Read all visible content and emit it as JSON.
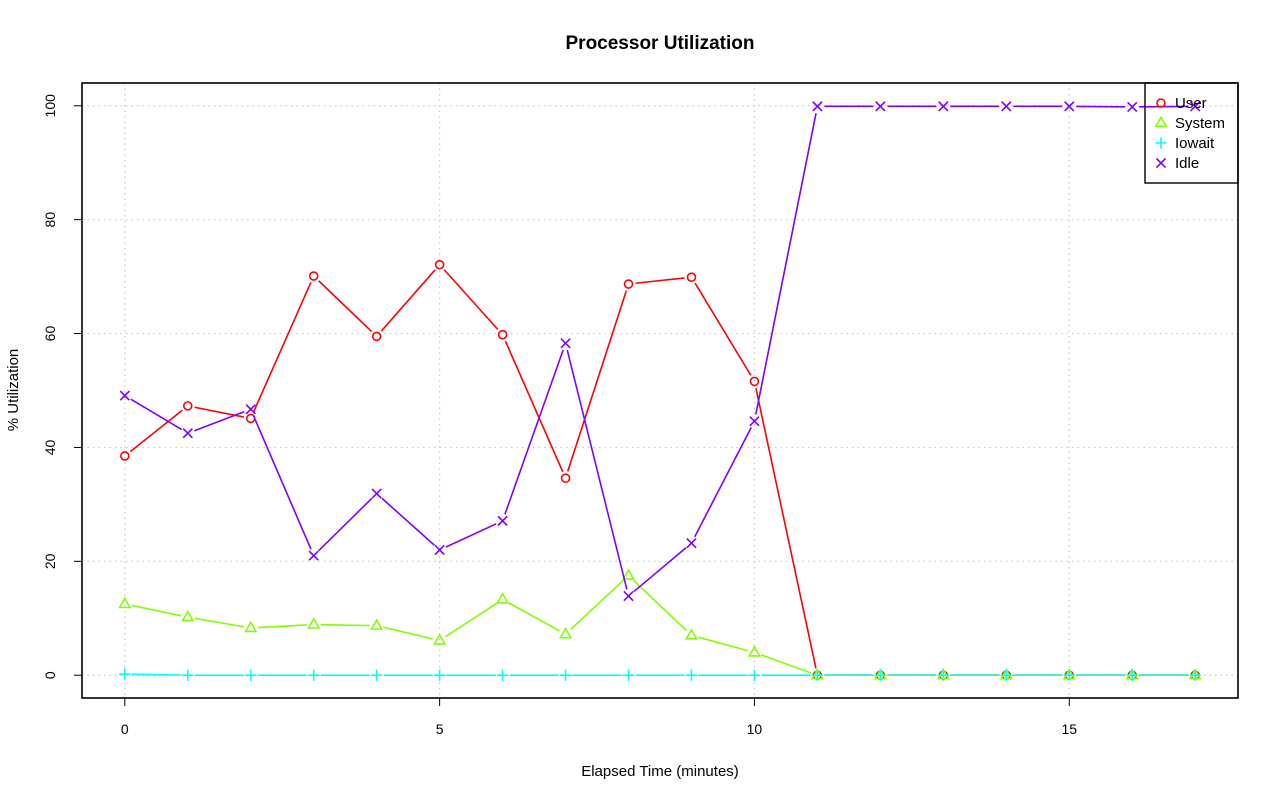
{
  "chart_data": {
    "type": "line",
    "title": "Processor Utilization",
    "xlabel": "Elapsed Time (minutes)",
    "ylabel": "% Utilization",
    "xlim": [
      -0.68,
      17.68
    ],
    "ylim": [
      -4,
      104
    ],
    "xticks": [
      0,
      5,
      10,
      15
    ],
    "yticks": [
      0,
      20,
      40,
      60,
      80,
      100
    ],
    "grid": true,
    "legend_position": "top-right",
    "x": [
      0,
      1,
      2,
      3,
      4,
      5,
      6,
      7,
      8,
      9,
      10,
      11,
      12,
      13,
      14,
      15,
      16,
      17
    ],
    "series": [
      {
        "name": "User",
        "color": "#ff0000",
        "marker": "circle",
        "values": [
          38.5,
          47.3,
          45.1,
          70.1,
          59.5,
          72.1,
          59.8,
          34.6,
          68.7,
          69.9,
          51.6,
          0,
          0,
          0,
          0,
          0,
          0,
          0
        ]
      },
      {
        "name": "System",
        "color": "#80ff00",
        "marker": "triangle",
        "values": [
          12.5,
          10.2,
          8.3,
          8.9,
          8.7,
          6.1,
          13.3,
          7.2,
          17.5,
          7.0,
          4.0,
          0,
          0,
          0,
          0,
          0,
          0,
          0
        ]
      },
      {
        "name": "Iowait",
        "color": "#00ffff",
        "marker": "plus",
        "values": [
          0.2,
          0,
          0,
          0,
          0,
          0,
          0,
          0,
          0,
          0,
          0,
          0,
          0,
          0,
          0,
          0,
          0,
          0
        ]
      },
      {
        "name": "Idle",
        "color": "#8000ff",
        "marker": "x",
        "values": [
          49.1,
          42.5,
          46.7,
          21.0,
          31.9,
          22.0,
          27.1,
          58.3,
          13.9,
          23.2,
          44.6,
          99.9,
          99.9,
          99.9,
          99.9,
          99.9,
          99.8,
          99.9
        ]
      }
    ]
  }
}
